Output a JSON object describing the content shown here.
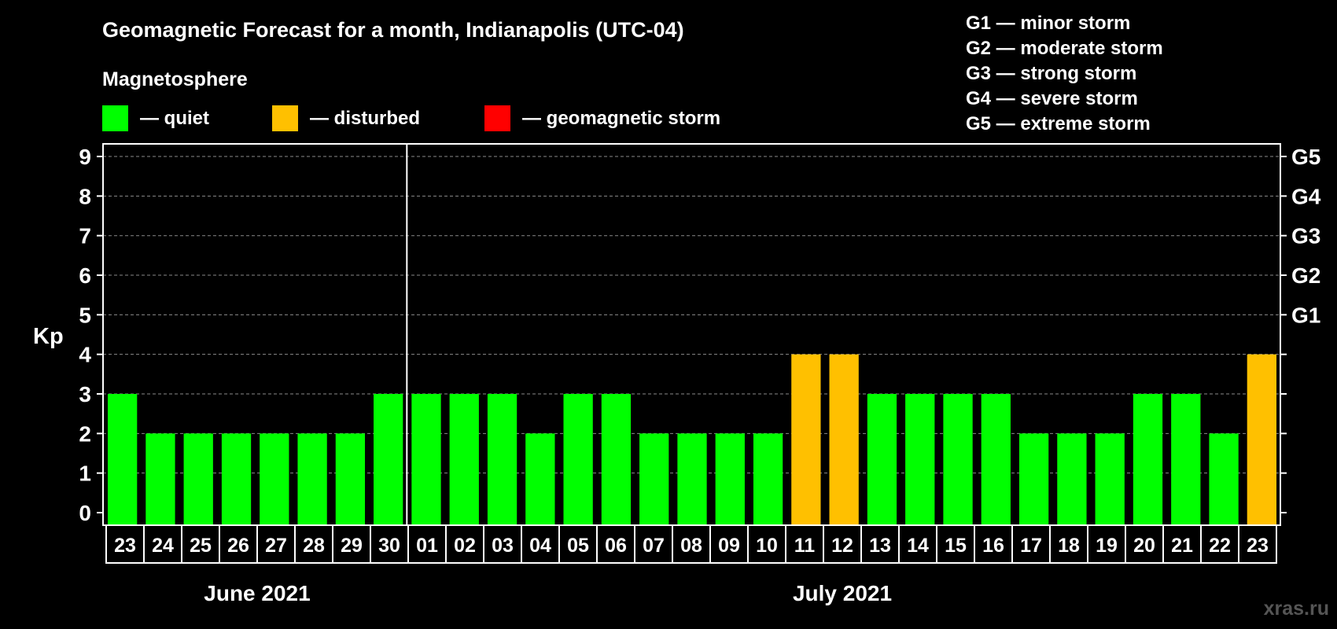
{
  "chart_data": {
    "type": "bar",
    "title": "Geomagnetic Forecast for a month, Indianapolis (UTC-04)",
    "ylabel": "Kp",
    "ylim": [
      0,
      9
    ],
    "yticks": [
      "0",
      "1",
      "2",
      "3",
      "4",
      "5",
      "6",
      "7",
      "8",
      "9"
    ],
    "g_scale": [
      {
        "level": 5,
        "label": "G1"
      },
      {
        "level": 6,
        "label": "G2"
      },
      {
        "level": 7,
        "label": "G3"
      },
      {
        "level": 8,
        "label": "G4"
      },
      {
        "level": 9,
        "label": "G5"
      }
    ],
    "legend_title": "Magnetosphere",
    "legend": [
      {
        "label": "— quiet",
        "color": "#00ff00"
      },
      {
        "label": "— disturbed",
        "color": "#ffc000"
      },
      {
        "label": "— geomagnetic storm",
        "color": "#ff0000"
      }
    ],
    "storm_legend": [
      "G1 — minor storm",
      "G2 — moderate storm",
      "G3 — strong storm",
      "G4 — severe storm",
      "G5 — extreme storm"
    ],
    "categories": [
      "23",
      "24",
      "25",
      "26",
      "27",
      "28",
      "29",
      "30",
      "01",
      "02",
      "03",
      "04",
      "05",
      "06",
      "07",
      "08",
      "09",
      "10",
      "11",
      "12",
      "13",
      "14",
      "15",
      "16",
      "17",
      "18",
      "19",
      "20",
      "21",
      "22",
      "23"
    ],
    "values": [
      3,
      2,
      2,
      2,
      2,
      2,
      2,
      3,
      3,
      3,
      3,
      2,
      3,
      3,
      2,
      2,
      2,
      2,
      4,
      4,
      3,
      3,
      3,
      3,
      2,
      2,
      2,
      3,
      3,
      2,
      4
    ],
    "months": [
      {
        "label": "June 2021",
        "start": 0,
        "end": 7
      },
      {
        "label": "July 2021",
        "start": 8,
        "end": 30
      }
    ],
    "colors": {
      "quiet": "#00ff00",
      "disturbed": "#ffc000",
      "storm": "#ff0000"
    }
  },
  "watermark": "xras.ru"
}
